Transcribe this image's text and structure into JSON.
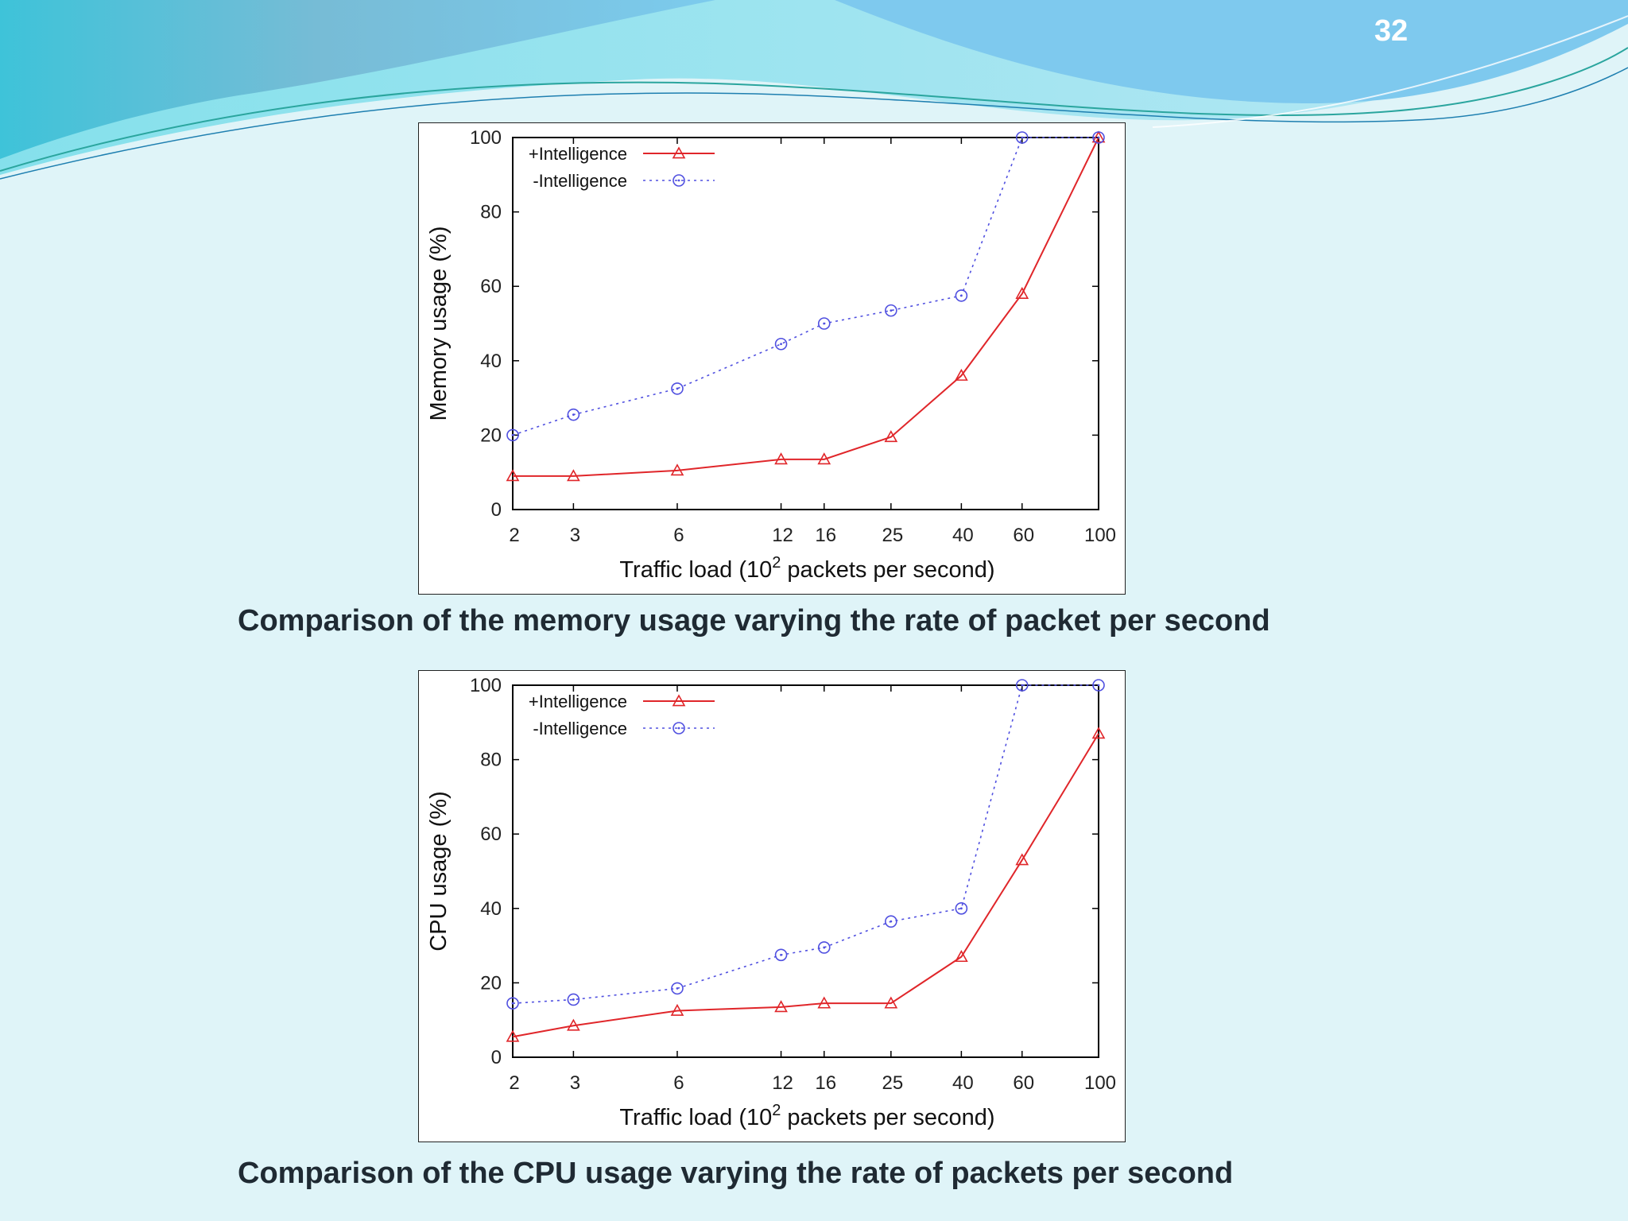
{
  "slide": {
    "number": "32",
    "captions": {
      "memory": "Comparison of the memory usage varying the rate of packet per second",
      "cpu": "Comparison of the CPU usage varying the rate of packets per second"
    },
    "colors": {
      "background": "#dff4f8",
      "wave_dark": "#73c0dc",
      "wave_light": "#a9def0",
      "series_plus": "#e0262a",
      "series_minus": "#5050e0"
    }
  },
  "chart_data": [
    {
      "type": "line",
      "x_scale": "log",
      "x": [
        2,
        3,
        6,
        12,
        16,
        25,
        40,
        60,
        100
      ],
      "x_tick_labels": [
        "2",
        "3",
        "6",
        "12",
        "16",
        "25",
        "40",
        "60",
        "100"
      ],
      "xlabel_main": "Traffic load (10",
      "xlabel_sup": "2",
      "xlabel_tail": " packets per second)",
      "ylabel": "Memory usage (%)",
      "ylim": [
        0,
        100
      ],
      "y_ticks": [
        "0",
        "20",
        "40",
        "60",
        "80",
        "100"
      ],
      "legend_position": "top-left",
      "series": [
        {
          "name": "+Intelligence",
          "marker": "triangle",
          "style": "solid",
          "values": [
            9,
            9,
            10.5,
            13.5,
            13.5,
            19.5,
            36,
            58,
            100
          ]
        },
        {
          "name": "-Intelligence",
          "marker": "circle",
          "style": "dotted",
          "values": [
            20,
            25.5,
            32.5,
            44.5,
            50,
            53.5,
            57.5,
            100,
            100
          ]
        }
      ]
    },
    {
      "type": "line",
      "x_scale": "log",
      "x": [
        2,
        3,
        6,
        12,
        16,
        25,
        40,
        60,
        100
      ],
      "x_tick_labels": [
        "2",
        "3",
        "6",
        "12",
        "16",
        "25",
        "40",
        "60",
        "100"
      ],
      "xlabel_main": "Traffic load (10",
      "xlabel_sup": "2",
      "xlabel_tail": " packets per second)",
      "ylabel": "CPU usage (%)",
      "ylim": [
        0,
        100
      ],
      "y_ticks": [
        "0",
        "20",
        "40",
        "60",
        "80",
        "100"
      ],
      "legend_position": "top-left",
      "series": [
        {
          "name": "+Intelligence",
          "marker": "triangle",
          "style": "solid",
          "values": [
            5.5,
            8.5,
            12.5,
            13.5,
            14.5,
            14.5,
            27,
            53,
            87
          ]
        },
        {
          "name": "-Intelligence",
          "marker": "circle",
          "style": "dotted",
          "values": [
            14.5,
            15.5,
            18.5,
            27.5,
            29.5,
            36.5,
            40,
            100,
            100
          ]
        }
      ]
    }
  ]
}
